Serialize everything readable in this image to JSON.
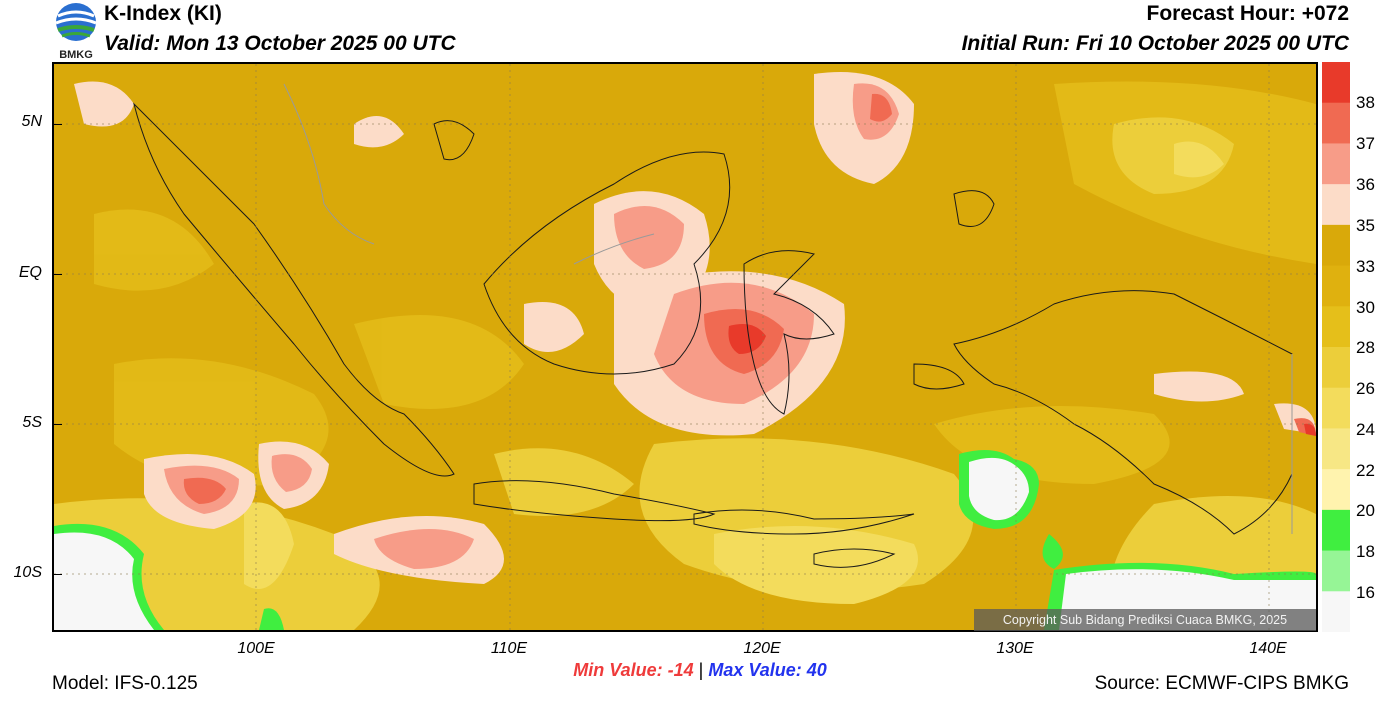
{
  "header": {
    "logo_text": "BMKG",
    "title": "K-Index (KI)",
    "valid": "Valid: Mon 13 October 2025 00 UTC",
    "forecast_hour": "Forecast Hour: +072",
    "initial_run": "Initial Run: Fri 10 October 2025 00 UTC"
  },
  "map": {
    "lat_labels": [
      "5N",
      "EQ",
      "5S",
      "10S"
    ],
    "lon_labels": [
      "100E",
      "110E",
      "120E",
      "130E",
      "140E"
    ],
    "copyright": "Copyright Sub Bidang Prediksi Cuaca BMKG, 2025"
  },
  "legend": {
    "labels": [
      "38",
      "37",
      "36",
      "35",
      "33",
      "30",
      "28",
      "26",
      "24",
      "22",
      "20",
      "18",
      "16"
    ],
    "colors": [
      "#e83a2a",
      "#f06a52",
      "#f79c88",
      "#fcdcc8",
      "#d9a90a",
      "#dfb10f",
      "#e5bf1a",
      "#ecce3a",
      "#f3dc5c",
      "#f7e785",
      "#fff3ae",
      "#40ee40",
      "#96f596",
      "#f7f7f7"
    ]
  },
  "footer": {
    "min_value": "Min Value: -14",
    "separator": "|",
    "max_value": "Max Value:  40",
    "model": "Model: IFS-0.125",
    "source": "Source: ECMWF-CIPS BMKG"
  }
}
